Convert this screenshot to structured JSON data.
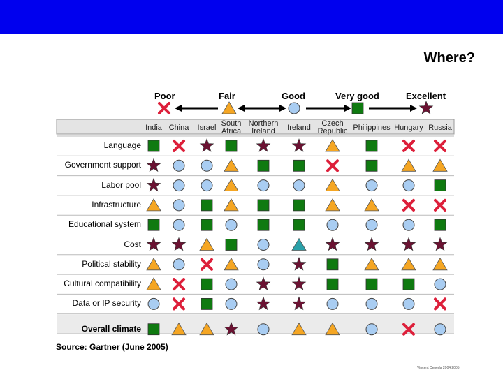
{
  "title": "Where?",
  "scale": [
    {
      "label": "Poor",
      "icon": "x"
    },
    {
      "label": "Fair",
      "icon": "triangle"
    },
    {
      "label": "Good",
      "icon": "circle"
    },
    {
      "label": "Very good",
      "icon": "square"
    },
    {
      "label": "Excellent",
      "icon": "star"
    }
  ],
  "countries": [
    [
      "India"
    ],
    [
      "China"
    ],
    [
      "Israel"
    ],
    [
      "South",
      "Africa"
    ],
    [
      "Northern",
      "Ireland"
    ],
    [
      "Ireland"
    ],
    [
      "Czech",
      "Republic"
    ],
    [
      "Philippines"
    ],
    [
      "Hungary"
    ],
    [
      "Russia"
    ]
  ],
  "rows": [
    {
      "label": "Language",
      "ratings": [
        "square",
        "x",
        "star",
        "square",
        "star",
        "star",
        "triangle",
        "square",
        "x",
        "x"
      ]
    },
    {
      "label": "Government support",
      "ratings": [
        "star",
        "circle",
        "circle",
        "triangle",
        "square",
        "square",
        "x",
        "square",
        "triangle",
        "triangle"
      ]
    },
    {
      "label": "Labor pool",
      "ratings": [
        "star",
        "circle",
        "circle",
        "triangle",
        "circle",
        "circle",
        "triangle",
        "circle",
        "circle",
        "square"
      ]
    },
    {
      "label": "Infrastructure",
      "ratings": [
        "triangle",
        "circle",
        "square",
        "triangle",
        "square",
        "square",
        "triangle",
        "triangle",
        "x",
        "x"
      ]
    },
    {
      "label": "Educational system",
      "ratings": [
        "square",
        "circle",
        "square",
        "circle",
        "square",
        "square",
        "circle",
        "circle",
        "circle",
        "square"
      ]
    },
    {
      "label": "Cost",
      "ratings": [
        "star",
        "star",
        "triangle",
        "square",
        "circle",
        "teal-triangle",
        "star",
        "star",
        "star",
        "star"
      ]
    },
    {
      "label": "Political stability",
      "ratings": [
        "triangle",
        "circle",
        "x",
        "triangle",
        "circle",
        "star",
        "square",
        "triangle",
        "triangle",
        "triangle"
      ]
    },
    {
      "label": "Cultural compatibility",
      "ratings": [
        "triangle",
        "x",
        "square",
        "circle",
        "star",
        "star",
        "square",
        "square",
        "square",
        "circle"
      ]
    },
    {
      "label": "Data or IP security",
      "ratings": [
        "circle",
        "x",
        "square",
        "circle",
        "star",
        "star",
        "circle",
        "circle",
        "circle",
        "x"
      ]
    },
    {
      "label": "Overall climate",
      "ratings": [
        "square",
        "triangle",
        "triangle",
        "star",
        "circle",
        "triangle",
        "triangle",
        "circle",
        "x",
        "circle"
      ]
    }
  ],
  "source": "Source: Gartner (June 2005)",
  "footer": "Vincent Cepeda 2004 2005",
  "colors": {
    "header_bar": "#0000ee",
    "poor": "#dd1f3a",
    "fair": "#f5a623",
    "good": "#a9cdf2",
    "very_good": "#0f7a10",
    "excellent": "#6b1232",
    "teal": "#2aa0a8"
  }
}
